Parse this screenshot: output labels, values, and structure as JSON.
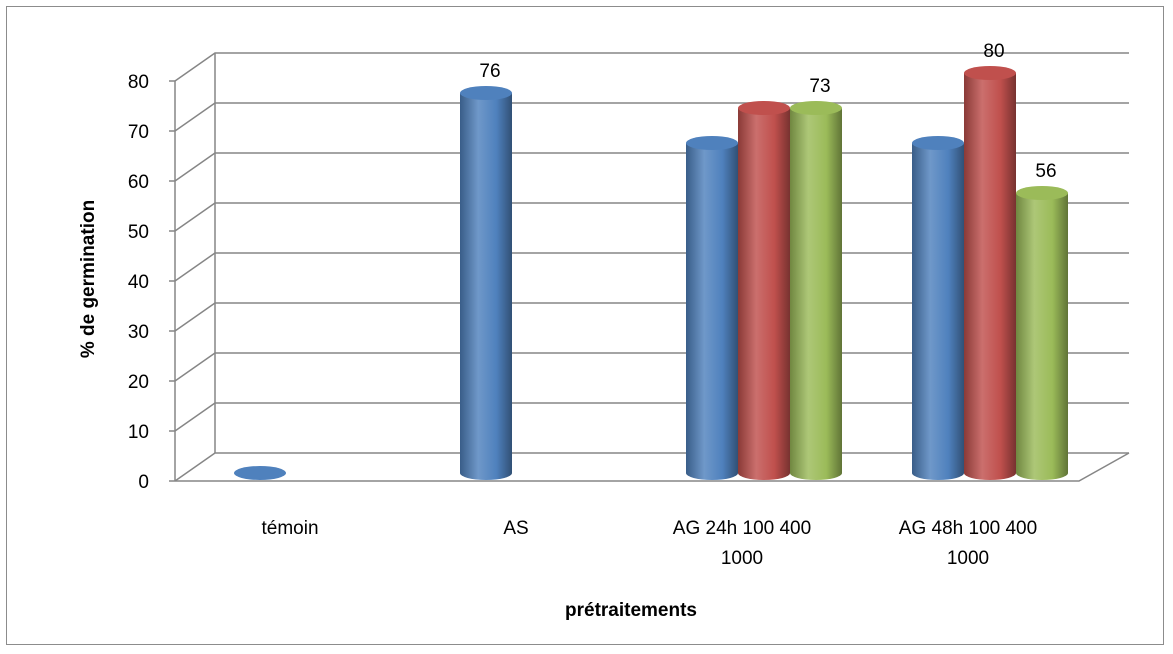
{
  "chart_data": {
    "type": "bar",
    "style": "3d-cylinder",
    "title": "",
    "xlabel": "prétraitements",
    "ylabel": "% de germination",
    "ylim": [
      0,
      80
    ],
    "ytick_step": 10,
    "grid": true,
    "legend": "none",
    "categories": [
      {
        "lines": [
          "témoin"
        ]
      },
      {
        "lines": [
          "AS"
        ]
      },
      {
        "lines": [
          "AG 24h 100 400",
          "1000"
        ]
      },
      {
        "lines": [
          "AG 48h 100 400",
          "1000"
        ]
      }
    ],
    "bars": [
      {
        "category": 0,
        "slot": 0,
        "value": 0,
        "color": "#4F81BD",
        "label": ""
      },
      {
        "category": 1,
        "slot": 0,
        "value": 76,
        "color": "#4F81BD",
        "label": "76"
      },
      {
        "category": 2,
        "slot": 0,
        "value": 66,
        "color": "#4F81BD",
        "label": ""
      },
      {
        "category": 2,
        "slot": 1,
        "value": 73,
        "color": "#C0504D",
        "label": ""
      },
      {
        "category": 2,
        "slot": 2,
        "value": 73,
        "color": "#9BBB59",
        "label": "73"
      },
      {
        "category": 3,
        "slot": 0,
        "value": 66,
        "color": "#4F81BD",
        "label": ""
      },
      {
        "category": 3,
        "slot": 1,
        "value": 80,
        "color": "#C0504D",
        "label": "80"
      },
      {
        "category": 3,
        "slot": 2,
        "value": 56,
        "color": "#9BBB59",
        "label": "56"
      }
    ]
  }
}
